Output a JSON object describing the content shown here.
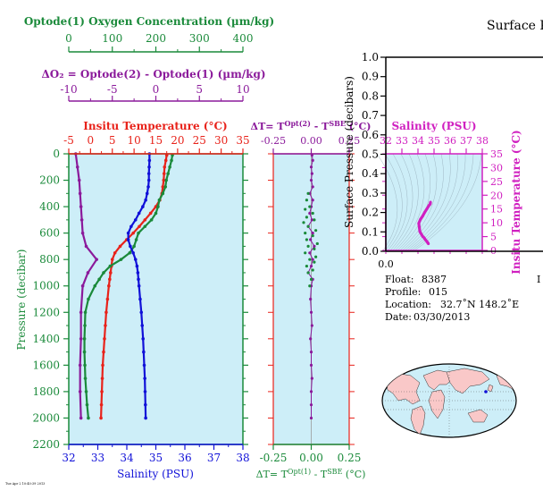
{
  "header": {
    "title": "Surface P"
  },
  "colors": {
    "oxygen": "#1a8a3a",
    "delta_o2": "#8b1a9b",
    "temperature": "#e8221a",
    "salinity": "#1010d8",
    "delta_t": "#1a8a3a",
    "ts_salinity": "#d020c0",
    "panel_bg": "#cdeef8",
    "black": "#000000"
  },
  "chart_data": [
    {
      "id": "oxygen-axis",
      "type": "axis",
      "label": "Optode(1) Oxygen Concentration (µm/kg)",
      "range": [
        0,
        400
      ],
      "ticks": [
        "0",
        "100",
        "200",
        "300",
        "400"
      ]
    },
    {
      "id": "delta-o2-axis",
      "type": "axis",
      "label": "ΔO₂ = Optode(2) - Optode(1)     (µm/kg)",
      "range": [
        -10,
        10
      ],
      "ticks": [
        "-10",
        "-5",
        "0",
        "5",
        "10"
      ]
    },
    {
      "id": "main-profile",
      "type": "line",
      "ylabel": "Pressure (decibar)",
      "ylim": [
        2200,
        0
      ],
      "y_ticks": [
        "0",
        "200",
        "400",
        "600",
        "800",
        "1000",
        "1200",
        "1400",
        "1600",
        "1800",
        "2000",
        "2200"
      ],
      "temperature_axis": {
        "label": "Insitu Temperature (°C)",
        "range": [
          -5,
          35
        ],
        "ticks": [
          "-5",
          "0",
          "5",
          "10",
          "15",
          "20",
          "25",
          "30",
          "35"
        ]
      },
      "salinity_axis": {
        "label": "Salinity (PSU)",
        "range": [
          32,
          38
        ],
        "ticks": [
          "32",
          "33",
          "34",
          "35",
          "36",
          "37",
          "38"
        ]
      },
      "series": [
        {
          "key": "temperature",
          "pressure": [
            10,
            50,
            100,
            150,
            200,
            250,
            300,
            350,
            400,
            450,
            500,
            550,
            600,
            650,
            700,
            750,
            800,
            850,
            900,
            950,
            1000,
            1100,
            1200,
            1300,
            1400,
            1500,
            1600,
            1700,
            1800,
            1900,
            2000
          ],
          "values": [
            17.5,
            17.3,
            17.0,
            16.9,
            16.8,
            16.6,
            16.4,
            15.9,
            15.0,
            13.8,
            12.5,
            11.2,
            9.8,
            8.3,
            6.8,
            5.6,
            5.0,
            4.8,
            4.6,
            4.4,
            4.2,
            3.9,
            3.6,
            3.4,
            3.2,
            3.0,
            2.8,
            2.7,
            2.6,
            2.5,
            2.4
          ]
        },
        {
          "key": "oxygen",
          "pressure": [
            10,
            50,
            100,
            150,
            200,
            250,
            300,
            350,
            400,
            450,
            500,
            550,
            600,
            650,
            700,
            750,
            800,
            850,
            900,
            950,
            1000,
            1100,
            1200,
            1300,
            1400,
            1500,
            1600,
            1700,
            1800,
            1900,
            2000
          ],
          "values": [
            238,
            236,
            232,
            228,
            224,
            222,
            216,
            208,
            205,
            200,
            190,
            175,
            160,
            155,
            150,
            140,
            120,
            95,
            80,
            70,
            60,
            45,
            38,
            37,
            36,
            36,
            37,
            38,
            40,
            42,
            45
          ]
        },
        {
          "key": "delta_o2",
          "pressure": [
            0,
            100,
            200,
            300,
            400,
            500,
            600,
            700,
            800,
            900,
            1000,
            1200,
            1400,
            1600,
            1800,
            2000
          ],
          "values": [
            -9.2,
            -9.0,
            -8.8,
            -8.7,
            -8.6,
            -8.5,
            -8.4,
            -8.0,
            -6.8,
            -7.8,
            -8.4,
            -8.6,
            -8.6,
            -8.7,
            -8.7,
            -8.6
          ]
        },
        {
          "key": "salinity",
          "pressure": [
            0,
            50,
            100,
            150,
            200,
            250,
            300,
            350,
            400,
            450,
            500,
            550,
            600,
            650,
            700,
            750,
            800,
            850,
            900,
            950,
            1000,
            1100,
            1200,
            1300,
            1400,
            1500,
            1600,
            1700,
            1800,
            1900,
            2000
          ],
          "values": [
            34.78,
            34.78,
            34.77,
            34.76,
            34.76,
            34.74,
            34.7,
            34.65,
            34.55,
            34.42,
            34.3,
            34.15,
            34.05,
            34.05,
            34.12,
            34.22,
            34.3,
            34.35,
            34.38,
            34.4,
            34.42,
            34.46,
            34.5,
            34.53,
            34.56,
            34.58,
            34.6,
            34.62,
            34.63,
            34.64,
            34.65
          ]
        }
      ]
    },
    {
      "id": "delta-t-profile",
      "type": "scatter",
      "top_label": "ΔT= T",
      "top_label_sup1": "Opt(2)",
      "top_label_mid": " - T",
      "top_label_sup2": "SBE",
      "top_label_end": " (°C)",
      "bottom_label": "ΔT= T",
      "bottom_label_sup1": "Opt(1)",
      "bottom_label_mid": " - T",
      "bottom_label_sup2": "SBE",
      "bottom_label_end": " (°C)",
      "xlim": [
        -0.25,
        0.25
      ],
      "ticks": [
        "-0.25",
        "0.00",
        "0.25"
      ],
      "series": [
        {
          "key": "delta_t_opt2",
          "pressure": [
            10,
            50,
            100,
            150,
            200,
            250,
            300,
            350,
            400,
            450,
            500,
            550,
            600,
            650,
            700,
            750,
            800,
            850,
            900,
            950,
            1000,
            1100,
            1200,
            1300,
            1400,
            1500,
            1600,
            1700,
            1800,
            1900,
            2000
          ],
          "values": [
            0.005,
            0.01,
            0.0,
            0.005,
            0.0,
            0.01,
            -0.01,
            0.01,
            0.0,
            -0.01,
            0.005,
            -0.02,
            0.01,
            -0.005,
            0.02,
            -0.01,
            0.01,
            0.0,
            -0.02,
            0.01,
            0.0,
            -0.005,
            0.0,
            0.005,
            -0.005,
            0.0,
            0.0,
            0.005,
            0.0,
            0.0,
            0.0
          ]
        },
        {
          "key": "delta_t_opt1",
          "pressure": [
            300,
            350,
            400,
            420,
            450,
            480,
            500,
            520,
            550,
            580,
            600,
            620,
            650,
            680,
            700,
            720,
            750,
            780,
            800,
            820,
            850,
            880,
            900,
            950,
            1000
          ],
          "values": [
            -0.02,
            -0.03,
            -0.01,
            -0.04,
            0.01,
            -0.03,
            0.02,
            -0.05,
            -0.02,
            0.03,
            -0.04,
            0.01,
            -0.03,
            0.04,
            -0.02,
            0.02,
            -0.04,
            0.03,
            -0.01,
            0.02,
            -0.03,
            0.01,
            -0.02,
            0.0,
            -0.01
          ]
        }
      ]
    },
    {
      "id": "ts-diagram",
      "type": "line",
      "xlabel": "Salinity (PSU)",
      "ylabel": "Insitu Temperature (°C)",
      "xlim": [
        32,
        38
      ],
      "ylim": [
        0,
        35
      ],
      "x_ticks": [
        "32",
        "33",
        "34",
        "35",
        "36",
        "37",
        "38"
      ],
      "y_ticks": [
        "0",
        "5",
        "10",
        "15",
        "20",
        "25",
        "30",
        "35"
      ],
      "series": [
        {
          "key": "ts",
          "salinity": [
            34.78,
            34.76,
            34.7,
            34.55,
            34.42,
            34.3,
            34.15,
            34.05,
            34.12,
            34.3,
            34.38,
            34.42,
            34.5,
            34.56,
            34.6,
            34.63,
            34.65
          ],
          "temperature": [
            17.5,
            16.8,
            16.4,
            15.0,
            13.8,
            12.5,
            11.2,
            9.8,
            6.8,
            5.0,
            4.6,
            4.2,
            3.6,
            3.2,
            2.8,
            2.6,
            2.4
          ]
        }
      ]
    },
    {
      "id": "surface-pressure",
      "type": "line",
      "ylabel": "Surface Pressure (decibars)",
      "ylim": [
        0.0,
        1.0
      ],
      "y_ticks": [
        "0.0",
        "0.1",
        "0.2",
        "0.3",
        "0.4",
        "0.5",
        "0.6",
        "0.7",
        "0.8",
        "0.9",
        "1.0"
      ],
      "x_ticks": [
        "0.0"
      ]
    }
  ],
  "float_info": {
    "float_label": "Float:",
    "float_value": "8387",
    "profile_label": "Profile:",
    "profile_value": "015",
    "location_label": "Location:",
    "location_value": "32.7˚N  148.2˚E",
    "date_label": "Date:",
    "date_value": "03/30/2013",
    "right_letter": "I"
  },
  "map": {
    "marker": "float-location-marker"
  },
  "footer": {
    "stamp": "Tue Apr 2 10:40:39 2013"
  }
}
